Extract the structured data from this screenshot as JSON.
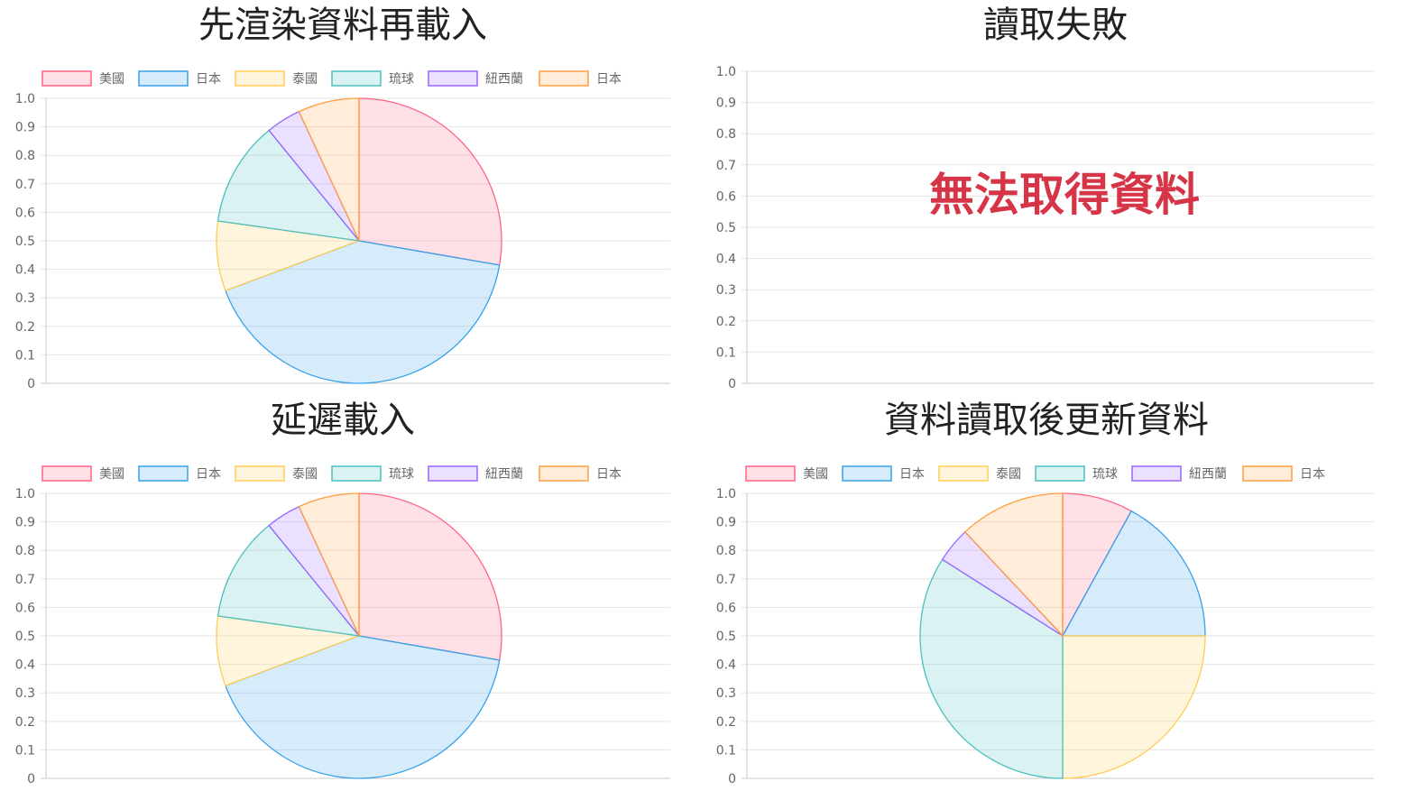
{
  "chart_data": [
    {
      "type": "pie",
      "title": "先渲染資料再載入",
      "status": "loaded",
      "categories": [
        "美國",
        "日本",
        "泰國",
        "琉球",
        "紐西蘭",
        "日本"
      ],
      "values": [
        28,
        42,
        8,
        12,
        4,
        7
      ],
      "colors": [
        "#ff6384",
        "#36a2eb",
        "#ffcd56",
        "#4bc0c0",
        "#9966ff",
        "#ff9f40"
      ],
      "y_ticks": [
        "0",
        "0.1",
        "0.2",
        "0.3",
        "0.4",
        "0.5",
        "0.6",
        "0.7",
        "0.8",
        "0.9",
        "1.0"
      ],
      "ylim": [
        0,
        1
      ],
      "legend_position": "top",
      "grid": true
    },
    {
      "type": "pie",
      "title": "讀取失敗",
      "status": "error",
      "error_message": "無法取得資料",
      "categories": [],
      "values": [],
      "y_ticks": [
        "0",
        "0.1",
        "0.2",
        "0.3",
        "0.4",
        "0.5",
        "0.6",
        "0.7",
        "0.8",
        "0.9",
        "1.0"
      ],
      "ylim": [
        0,
        1
      ],
      "grid": true
    },
    {
      "type": "pie",
      "title": "延遲載入",
      "status": "loaded",
      "categories": [
        "美國",
        "日本",
        "泰國",
        "琉球",
        "紐西蘭",
        "日本"
      ],
      "values": [
        28,
        42,
        8,
        12,
        4,
        7
      ],
      "colors": [
        "#ff6384",
        "#36a2eb",
        "#ffcd56",
        "#4bc0c0",
        "#9966ff",
        "#ff9f40"
      ],
      "y_ticks": [
        "0",
        "0.1",
        "0.2",
        "0.3",
        "0.4",
        "0.5",
        "0.6",
        "0.7",
        "0.8",
        "0.9",
        "1.0"
      ],
      "ylim": [
        0,
        1
      ],
      "legend_position": "top",
      "grid": true
    },
    {
      "type": "pie",
      "title": "資料讀取後更新資料",
      "status": "loaded",
      "categories": [
        "美國",
        "日本",
        "泰國",
        "琉球",
        "紐西蘭",
        "日本"
      ],
      "values": [
        8,
        17,
        25,
        34,
        4,
        12
      ],
      "colors": [
        "#ff6384",
        "#36a2eb",
        "#ffcd56",
        "#4bc0c0",
        "#9966ff",
        "#ff9f40"
      ],
      "y_ticks": [
        "0",
        "0.1",
        "0.2",
        "0.3",
        "0.4",
        "0.5",
        "0.6",
        "0.7",
        "0.8",
        "0.9",
        "1.0"
      ],
      "ylim": [
        0,
        1
      ],
      "legend_position": "top",
      "grid": true
    }
  ]
}
